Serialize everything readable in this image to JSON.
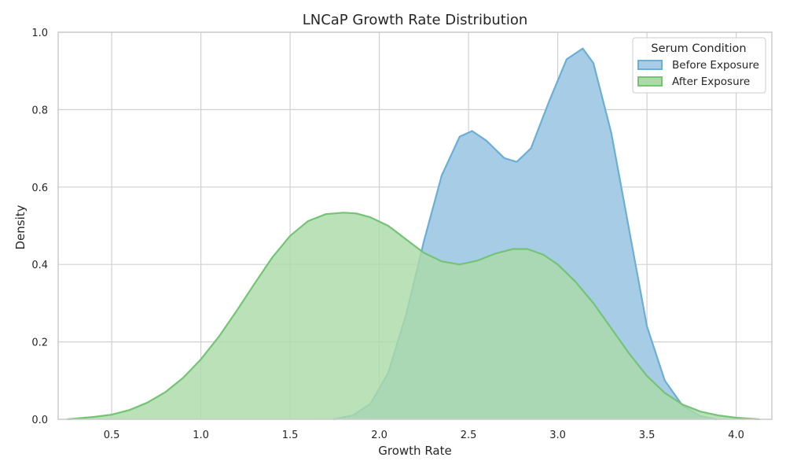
{
  "chart_data": {
    "type": "area",
    "title": "LNCaP Growth Rate Distribution",
    "xlabel": "Growth Rate",
    "ylabel": "Density",
    "xlim": [
      0.2,
      4.2
    ],
    "ylim": [
      0,
      1.0
    ],
    "xticks": [
      "0.5",
      "1.0",
      "1.5",
      "2.0",
      "2.5",
      "3.0",
      "3.5",
      "4.0"
    ],
    "yticks": [
      "0.0",
      "0.2",
      "0.4",
      "0.6",
      "0.8",
      "1.0"
    ],
    "grid": true,
    "legend": {
      "title": "Serum Condition",
      "placement": "top-right"
    },
    "series": [
      {
        "name": "Before Exposure",
        "color": "#6baed6",
        "fill": "#a6cde5",
        "x": [
          1.74,
          1.85,
          1.95,
          2.05,
          2.15,
          2.25,
          2.35,
          2.45,
          2.52,
          2.6,
          2.7,
          2.77,
          2.85,
          2.95,
          3.05,
          3.14,
          3.2,
          3.3,
          3.4,
          3.5,
          3.6,
          3.7,
          3.8,
          3.89
        ],
        "values": [
          0.0,
          0.01,
          0.04,
          0.12,
          0.27,
          0.46,
          0.63,
          0.73,
          0.745,
          0.72,
          0.675,
          0.665,
          0.7,
          0.82,
          0.93,
          0.958,
          0.92,
          0.74,
          0.49,
          0.24,
          0.1,
          0.035,
          0.008,
          0.0
        ]
      },
      {
        "name": "After Exposure",
        "color": "#74c476",
        "fill": "#acdba8",
        "x": [
          0.25,
          0.4,
          0.5,
          0.6,
          0.7,
          0.8,
          0.9,
          1.0,
          1.1,
          1.2,
          1.3,
          1.4,
          1.5,
          1.6,
          1.7,
          1.8,
          1.87,
          1.95,
          2.05,
          2.15,
          2.25,
          2.35,
          2.45,
          2.55,
          2.65,
          2.75,
          2.83,
          2.92,
          3.0,
          3.1,
          3.2,
          3.3,
          3.4,
          3.5,
          3.6,
          3.7,
          3.8,
          3.9,
          4.0,
          4.13
        ],
        "values": [
          0.0,
          0.006,
          0.012,
          0.024,
          0.043,
          0.07,
          0.107,
          0.155,
          0.213,
          0.28,
          0.35,
          0.418,
          0.474,
          0.512,
          0.53,
          0.534,
          0.532,
          0.522,
          0.5,
          0.465,
          0.43,
          0.408,
          0.4,
          0.41,
          0.428,
          0.44,
          0.44,
          0.425,
          0.4,
          0.355,
          0.3,
          0.235,
          0.17,
          0.112,
          0.068,
          0.038,
          0.02,
          0.01,
          0.004,
          0.0
        ]
      }
    ]
  }
}
